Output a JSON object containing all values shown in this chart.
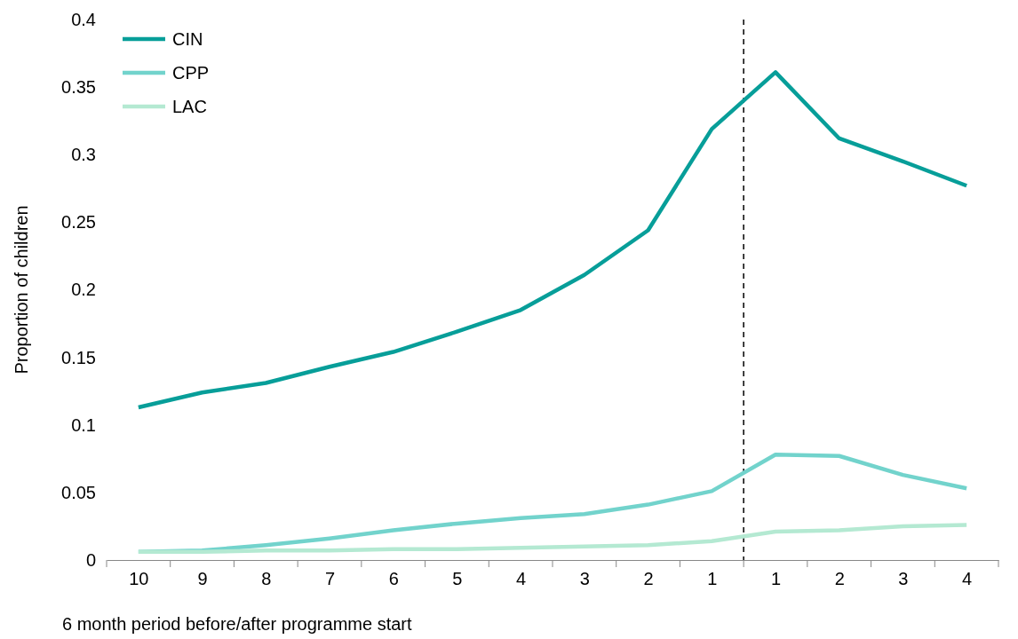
{
  "chart_data": {
    "type": "line",
    "xlabel": "6 month period before/after programme start",
    "ylabel": "Proportion of children",
    "categories": [
      "10",
      "9",
      "8",
      "7",
      "6",
      "5",
      "4",
      "3",
      "2",
      "1",
      "1",
      "2",
      "3",
      "4"
    ],
    "ylim": [
      0,
      0.4
    ],
    "yticks": [
      0,
      0.05,
      0.1,
      0.15,
      0.2,
      0.25,
      0.3,
      0.35,
      0.4
    ],
    "grid": false,
    "legend": "top left",
    "marker": "none",
    "line_style": "solid",
    "series": [
      {
        "name": "CIN",
        "color": "#079e99",
        "values": [
          0.113,
          0.124,
          0.131,
          0.143,
          0.154,
          0.169,
          0.185,
          0.211,
          0.244,
          0.319,
          0.361,
          0.312,
          0.295,
          0.277
        ]
      },
      {
        "name": "CPP",
        "color": "#72d3cc",
        "values": [
          0.006,
          0.007,
          0.011,
          0.016,
          0.022,
          0.027,
          0.031,
          0.034,
          0.041,
          0.051,
          0.078,
          0.077,
          0.063,
          0.053
        ]
      },
      {
        "name": "LAC",
        "color": "#b4e9d2",
        "values": [
          0.006,
          0.006,
          0.007,
          0.007,
          0.008,
          0.008,
          0.009,
          0.01,
          0.011,
          0.014,
          0.021,
          0.022,
          0.025,
          0.026
        ]
      }
    ]
  }
}
